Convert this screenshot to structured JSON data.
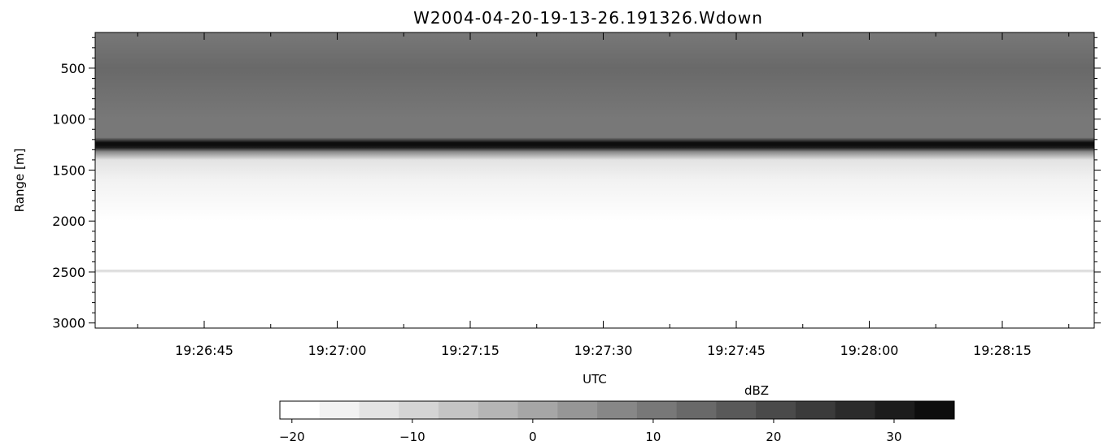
{
  "chart_data": {
    "type": "heatmap",
    "title": "W2004-04-20-19-13-26.191326.Wdown",
    "xlabel": "UTC",
    "ylabel": "Range [m]",
    "x_ticks": [
      "19:26:45",
      "19:27:00",
      "19:27:15",
      "19:27:30",
      "19:27:45",
      "19:28:00",
      "19:28:15"
    ],
    "y_ticks": [
      500,
      1000,
      1500,
      2000,
      2500,
      3000
    ],
    "y_axis": "inverted",
    "ylim": [
      3050,
      150
    ],
    "colorbar": {
      "label": "dBZ",
      "ticks": [
        -20,
        -10,
        0,
        10,
        20,
        30
      ],
      "range": [
        -21,
        35
      ],
      "colors": [
        "#ffffff",
        "#f2f2f2",
        "#e3e3e3",
        "#d4d4d4",
        "#c4c4c4",
        "#b5b5b5",
        "#a6a6a6",
        "#969696",
        "#878787",
        "#787878",
        "#696969",
        "#595959",
        "#4a4a4a",
        "#3b3b3b",
        "#2b2b2b",
        "#1c1c1c",
        "#0d0d0d"
      ]
    },
    "profile": {
      "range_m": [
        150,
        500,
        1000,
        1180,
        1230,
        1255,
        1280,
        1320,
        1400,
        1600,
        2000,
        2470,
        2490,
        2510,
        3050
      ],
      "dBZ": [
        11,
        12,
        10,
        9,
        33,
        35,
        31,
        7,
        -12,
        -16,
        -18,
        -18,
        -10,
        -18,
        -18
      ]
    }
  }
}
